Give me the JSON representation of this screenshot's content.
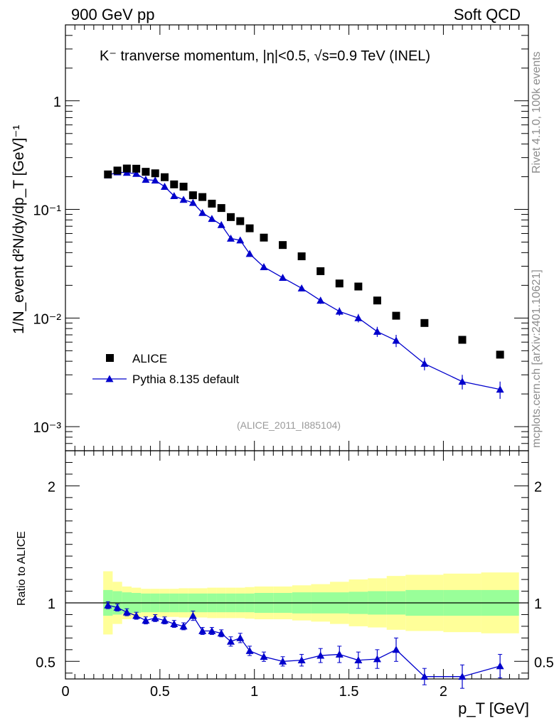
{
  "header": {
    "left": "900 GeV pp",
    "right": "Soft QCD"
  },
  "side": {
    "rivet": "Rivet 4.1.0,  100k events",
    "url": "mcplots.cern.ch [arXiv:2401.10621]"
  },
  "watermark": "(ALICE_2011_I885104)",
  "title": "K⁻ tranverse momentum, |η|<0.5, √s=0.9 TeV (INEL)",
  "axes": {
    "ylabel_top": "1/N_event d²N/dy/dp_T [GeV]⁻¹",
    "ylabel_bottom": "Ratio to ALICE",
    "xlabel": "p_T [GeV]"
  },
  "legend": {
    "data_label": "ALICE",
    "mc_label": "Pythia 8.135 default"
  },
  "colors": {
    "mc": "#0000cc",
    "data": "#000000",
    "band_inner": "#99ff99",
    "band_outer": "#ffff99"
  },
  "chart_data": [
    {
      "type": "scatter",
      "title": "K⁻ tranverse momentum, |η|<0.5, √s=0.9 TeV (INEL)",
      "xlabel": "p_T [GeV]",
      "ylabel": "1/N_event d²N/dy/dp_T [GeV]⁻¹",
      "yscale": "log",
      "xlim": [
        0,
        2.45
      ],
      "ylim": [
        0.0006,
        5
      ],
      "x_ticks": [
        "0",
        "0.5",
        "1",
        "1.5",
        "2"
      ],
      "y_ticks": [
        "10⁻³",
        "10⁻²",
        "10⁻¹",
        "1"
      ],
      "x": [
        0.225,
        0.275,
        0.325,
        0.375,
        0.425,
        0.475,
        0.525,
        0.575,
        0.625,
        0.675,
        0.725,
        0.775,
        0.825,
        0.875,
        0.925,
        0.975,
        1.05,
        1.15,
        1.25,
        1.35,
        1.45,
        1.55,
        1.65,
        1.75,
        1.9,
        2.1,
        2.3
      ],
      "series": [
        {
          "name": "ALICE",
          "marker": "square",
          "values": [
            0.21,
            0.228,
            0.238,
            0.237,
            0.222,
            0.215,
            0.198,
            0.17,
            0.162,
            0.135,
            0.13,
            0.113,
            0.103,
            0.085,
            0.078,
            0.067,
            0.055,
            0.047,
            0.037,
            0.027,
            0.0208,
            0.0195,
            0.0145,
            0.0105,
            0.009,
            0.0063,
            0.0046
          ]
        },
        {
          "name": "Pythia 8.135 default",
          "marker": "triangle",
          "values": [
            0.206,
            0.22,
            0.218,
            0.213,
            0.188,
            0.185,
            0.162,
            0.133,
            0.123,
            0.115,
            0.093,
            0.082,
            0.072,
            0.054,
            0.052,
            0.039,
            0.0295,
            0.0235,
            0.0188,
            0.0145,
            0.0115,
            0.01,
            0.0075,
            0.0062,
            0.0038,
            0.0026,
            0.0022
          ],
          "errors": [
            0.006,
            0.006,
            0.006,
            0.006,
            0.006,
            0.006,
            0.005,
            0.004,
            0.004,
            0.005,
            0.004,
            0.003,
            0.003,
            0.0025,
            0.003,
            0.002,
            0.0015,
            0.0012,
            0.0011,
            0.001,
            0.001,
            0.0009,
            0.0008,
            0.0008,
            0.0005,
            0.0004,
            0.0004
          ]
        }
      ]
    },
    {
      "type": "scatter",
      "ylabel": "Ratio to ALICE",
      "xlabel": "p_T [GeV]",
      "xlim": [
        0,
        2.45
      ],
      "ylim": [
        0.35,
        2.3
      ],
      "y_ticks": [
        "0.5",
        "1",
        "2"
      ],
      "reference_line": 1,
      "band_edges": [
        0.2,
        0.25,
        0.3,
        0.35,
        0.4,
        0.45,
        0.5,
        0.55,
        0.6,
        0.65,
        0.7,
        0.75,
        0.8,
        0.85,
        0.9,
        0.95,
        1.0,
        1.1,
        1.2,
        1.3,
        1.4,
        1.5,
        1.6,
        1.7,
        1.8,
        2.0,
        2.2,
        2.4
      ],
      "band_inner": [
        0.11,
        0.1,
        0.09,
        0.085,
        0.08,
        0.08,
        0.08,
        0.08,
        0.08,
        0.08,
        0.08,
        0.08,
        0.08,
        0.08,
        0.08,
        0.08,
        0.085,
        0.085,
        0.09,
        0.09,
        0.09,
        0.095,
        0.1,
        0.1,
        0.11,
        0.11,
        0.11
      ],
      "band_outer": [
        0.27,
        0.18,
        0.14,
        0.13,
        0.12,
        0.12,
        0.12,
        0.12,
        0.125,
        0.125,
        0.125,
        0.13,
        0.13,
        0.13,
        0.13,
        0.135,
        0.14,
        0.14,
        0.15,
        0.16,
        0.18,
        0.2,
        0.21,
        0.23,
        0.24,
        0.25,
        0.26
      ],
      "x": [
        0.225,
        0.275,
        0.325,
        0.375,
        0.425,
        0.475,
        0.525,
        0.575,
        0.625,
        0.675,
        0.725,
        0.775,
        0.825,
        0.875,
        0.925,
        0.975,
        1.05,
        1.15,
        1.25,
        1.35,
        1.45,
        1.55,
        1.65,
        1.75,
        1.9,
        2.1,
        2.3
      ],
      "values": [
        0.98,
        0.96,
        0.92,
        0.89,
        0.85,
        0.87,
        0.85,
        0.82,
        0.8,
        0.89,
        0.76,
        0.76,
        0.74,
        0.67,
        0.7,
        0.59,
        0.54,
        0.5,
        0.51,
        0.55,
        0.56,
        0.51,
        0.52,
        0.6,
        0.37,
        0.37,
        0.46
      ],
      "errors": [
        0.03,
        0.03,
        0.03,
        0.03,
        0.03,
        0.03,
        0.03,
        0.03,
        0.03,
        0.04,
        0.03,
        0.03,
        0.03,
        0.04,
        0.04,
        0.04,
        0.04,
        0.04,
        0.05,
        0.06,
        0.07,
        0.07,
        0.08,
        0.1,
        0.07,
        0.1,
        0.1
      ]
    }
  ]
}
